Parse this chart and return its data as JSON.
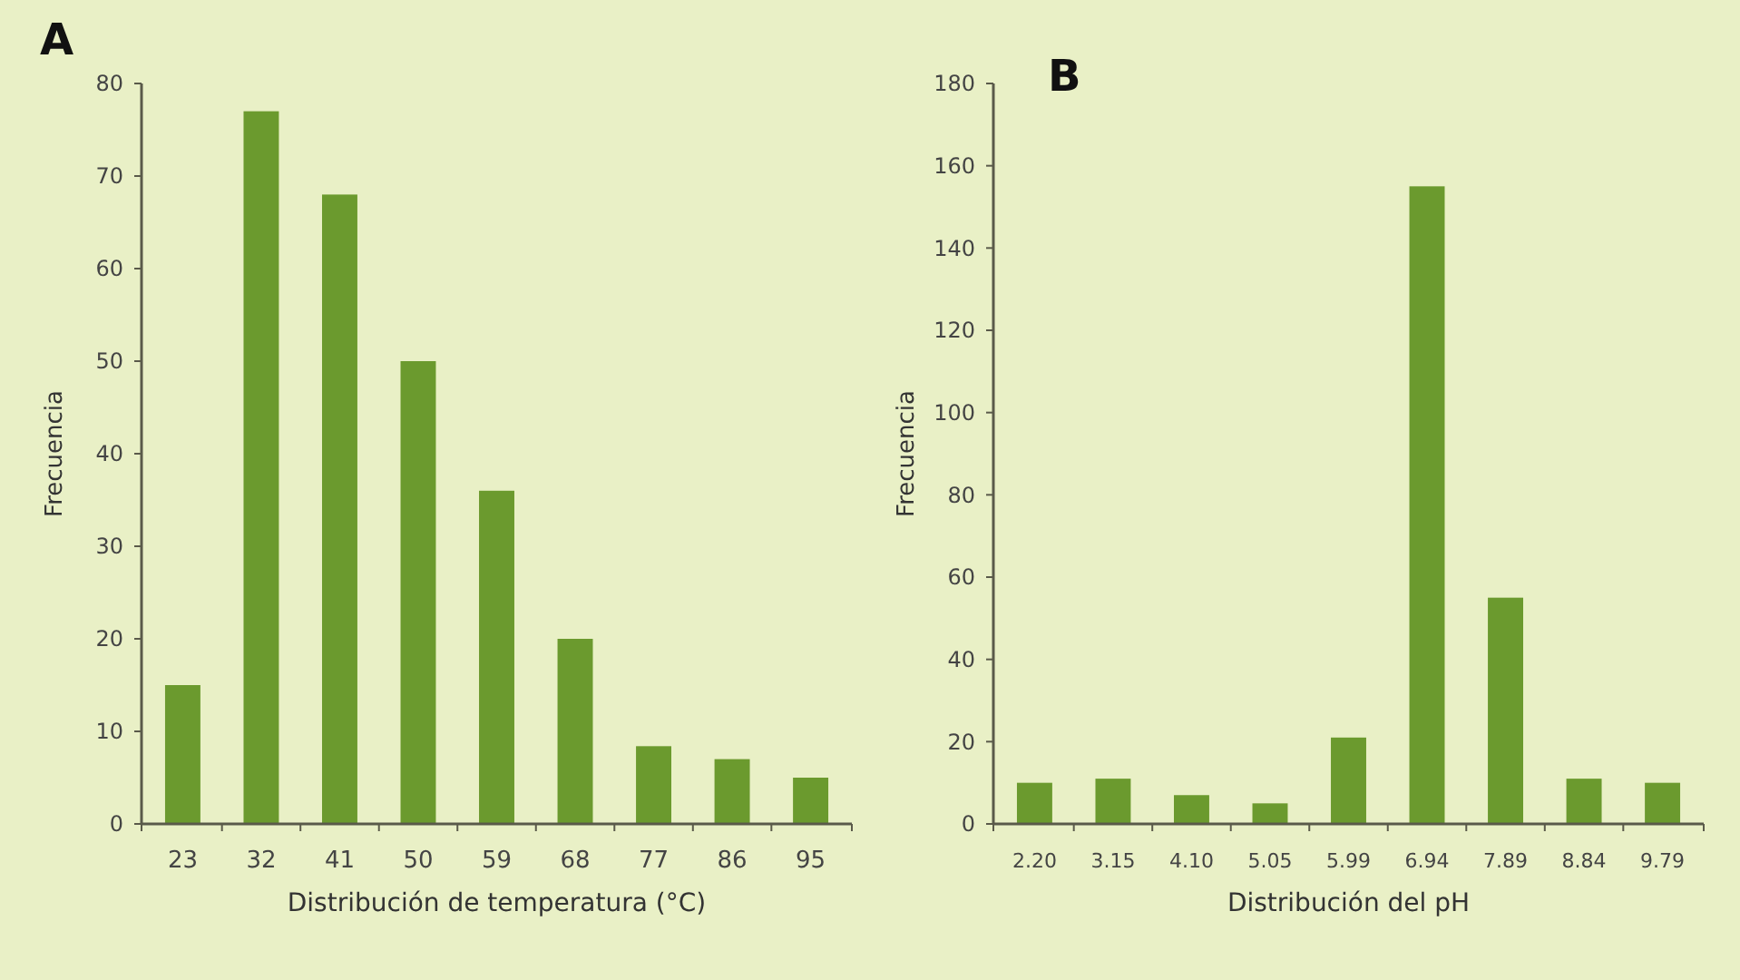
{
  "chart_data": [
    {
      "type": "bar",
      "title": "A",
      "xlabel": "Distribución de temperatura (°C)",
      "ylabel": "Frecuencia",
      "categories": [
        "23",
        "32",
        "41",
        "50",
        "59",
        "68",
        "77",
        "86",
        "95"
      ],
      "values": [
        15,
        77,
        68,
        50,
        36,
        20,
        8.4,
        7,
        5
      ],
      "color": "#6b9a2e",
      "ylim": [
        0,
        80
      ],
      "yticks": [
        0,
        10,
        20,
        30,
        40,
        50,
        60,
        70,
        80
      ],
      "grid": false
    },
    {
      "type": "bar",
      "title": "B",
      "xlabel": "Distribución del pH",
      "ylabel": "Frecuencia",
      "categories": [
        "2.20",
        "3.15",
        "4.10",
        "5.05",
        "5.99",
        "6.94",
        "7.89",
        "8.84",
        "9.79"
      ],
      "values": [
        10,
        11,
        7,
        5,
        21,
        155,
        55,
        11,
        10
      ],
      "color": "#6b9a2e",
      "ylim": [
        0,
        180
      ],
      "yticks": [
        0,
        20,
        40,
        60,
        80,
        100,
        120,
        140,
        160,
        180
      ],
      "grid": false
    }
  ]
}
